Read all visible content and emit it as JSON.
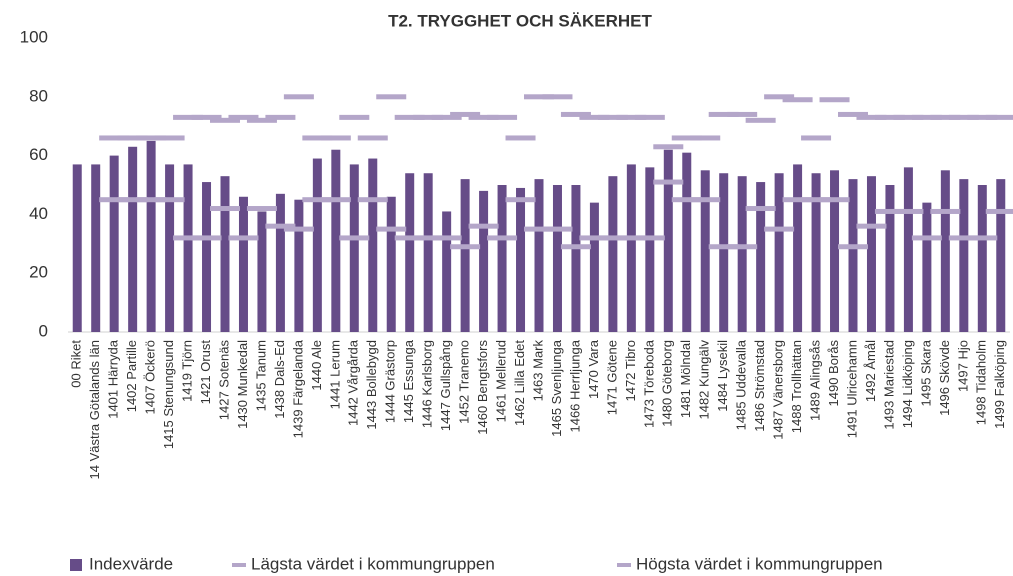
{
  "chart_data": {
    "type": "bar",
    "title": "T2. TRYGGHET OCH SÄKERHET",
    "categories": [
      "00 Riket",
      "14 Västra Götalands län",
      "1401 Härryda",
      "1402 Partille",
      "1407 Öckerö",
      "1415 Stenungsund",
      "1419 Tjörn",
      "1421 Orust",
      "1427 Sotenäs",
      "1430 Munkedal",
      "1435 Tanum",
      "1438 Dals-Ed",
      "1439 Färgelanda",
      "1440 Ale",
      "1441 Lerum",
      "1442 Vårgårda",
      "1443 Bollebygd",
      "1444 Grästorp",
      "1445 Essunga",
      "1446 Karlsborg",
      "1447 Gullspång",
      "1452 Tranemo",
      "1460 Bengtsfors",
      "1461 Mellerud",
      "1462 Lilla Edet",
      "1463 Mark",
      "1465 Svenljunga",
      "1466 Herrljunga",
      "1470 Vara",
      "1471 Götene",
      "1472 Tibro",
      "1473 Töreboda",
      "1480 Göteborg",
      "1481 Mölndal",
      "1482 Kungälv",
      "1484 Lysekil",
      "1485 Uddevalla",
      "1486 Strömstad",
      "1487 Vänersborg",
      "1488 Trollhättan",
      "1489 Alingsås",
      "1490 Borås",
      "1491 Ulricehamn",
      "1492 Åmål",
      "1493 Mariestad",
      "1494 Lidköping",
      "1495 Skara",
      "1496 Skövde",
      "1497 Hjo",
      "1498 Tidaholm",
      "1499 Falköping"
    ],
    "series": [
      {
        "name": "Indexvärde",
        "color": "#664c88",
        "kind": "bar",
        "values": [
          57,
          57,
          60,
          63,
          65,
          57,
          57,
          51,
          53,
          46,
          41,
          47,
          45,
          59,
          62,
          57,
          59,
          46,
          54,
          54,
          41,
          52,
          48,
          50,
          49,
          52,
          50,
          50,
          44,
          53,
          57,
          56,
          62,
          61,
          55,
          54,
          53,
          51,
          54,
          57,
          54,
          55,
          52,
          53,
          50,
          56,
          44,
          55,
          52,
          50,
          52
        ]
      },
      {
        "name": "Lägsta värdet i kommungruppen",
        "color": "#b4a6c9",
        "kind": "dash",
        "values": [
          null,
          null,
          45,
          45,
          45,
          45,
          32,
          32,
          42,
          32,
          42,
          36,
          35,
          45,
          45,
          32,
          45,
          35,
          32,
          32,
          32,
          29,
          36,
          32,
          45,
          35,
          35,
          29,
          32,
          32,
          32,
          32,
          51,
          45,
          45,
          29,
          29,
          42,
          35,
          45,
          45,
          45,
          29,
          36,
          41,
          41,
          32,
          41,
          32,
          32,
          41
        ]
      },
      {
        "name": "Högsta värdet i kommungruppen",
        "color": "#b4a6c9",
        "kind": "dash",
        "values": [
          null,
          null,
          66,
          66,
          66,
          66,
          73,
          73,
          72,
          73,
          72,
          73,
          80,
          66,
          66,
          73,
          66,
          80,
          73,
          73,
          73,
          74,
          73,
          73,
          66,
          80,
          80,
          74,
          73,
          73,
          73,
          73,
          63,
          66,
          66,
          74,
          74,
          72,
          80,
          79,
          66,
          79,
          74,
          73,
          73,
          73,
          73,
          73,
          73,
          73,
          73
        ]
      }
    ],
    "ylim": [
      0,
      100
    ],
    "yticks": [
      0,
      20,
      40,
      60,
      80,
      100
    ],
    "legend": "bottom"
  }
}
